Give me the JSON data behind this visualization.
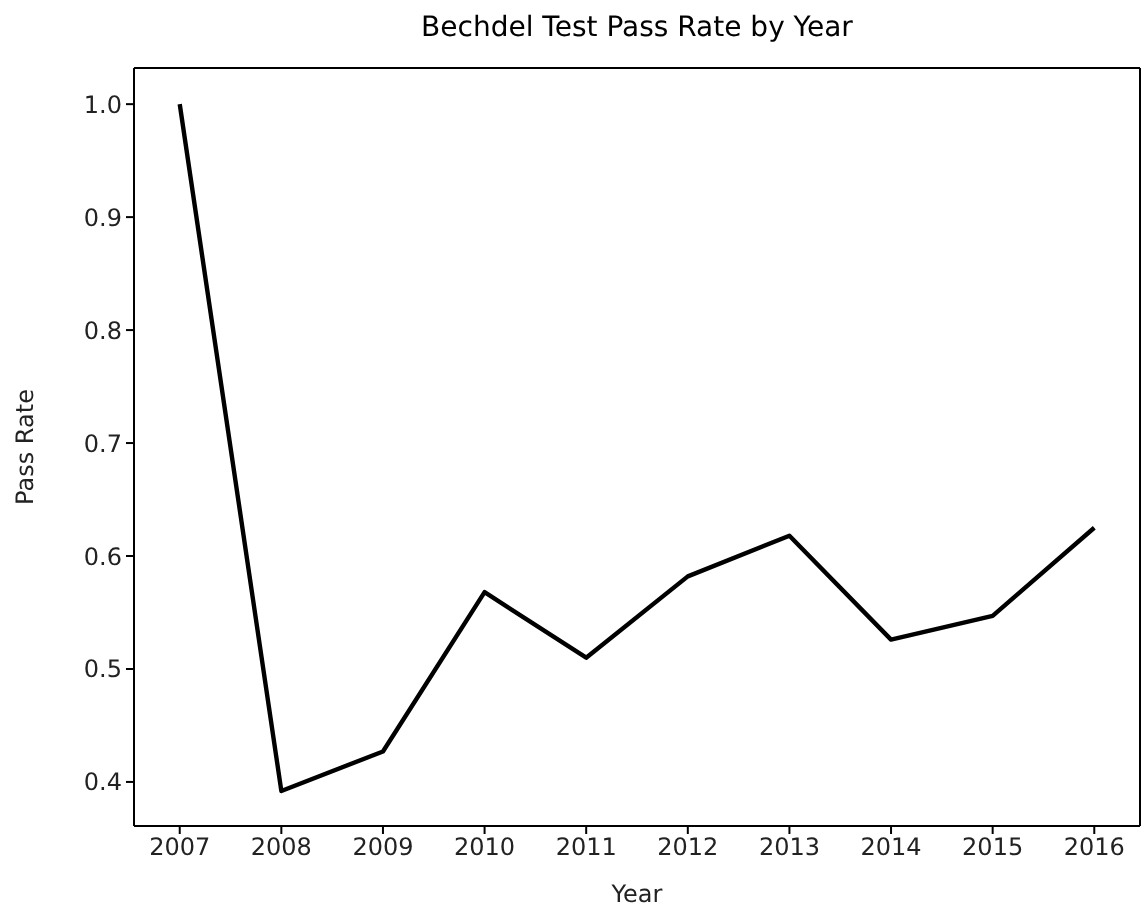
{
  "chart_data": {
    "type": "line",
    "title": "Bechdel Test Pass Rate by Year",
    "xlabel": "Year",
    "ylabel": "Pass Rate",
    "x": [
      2007,
      2008,
      2009,
      2010,
      2011,
      2012,
      2013,
      2014,
      2015,
      2016
    ],
    "series": [
      {
        "color": "#000000",
        "values": [
          1.0,
          0.392,
          0.427,
          0.568,
          0.51,
          0.582,
          0.618,
          0.526,
          0.547,
          0.625
        ]
      }
    ],
    "xlim": [
      2006.55,
      2016.45
    ],
    "xticks": [
      2007,
      2008,
      2009,
      2010,
      2011,
      2012,
      2013,
      2014,
      2015,
      2016
    ],
    "ylim": [
      0.361,
      1.032
    ],
    "yticks": [
      0.4,
      0.5,
      0.6,
      0.7,
      0.8,
      0.9,
      {
        "value": 1,
        "label": "1.0"
      }
    ],
    "grid": false,
    "legend": false,
    "marker": "none",
    "line_style": "solid"
  }
}
